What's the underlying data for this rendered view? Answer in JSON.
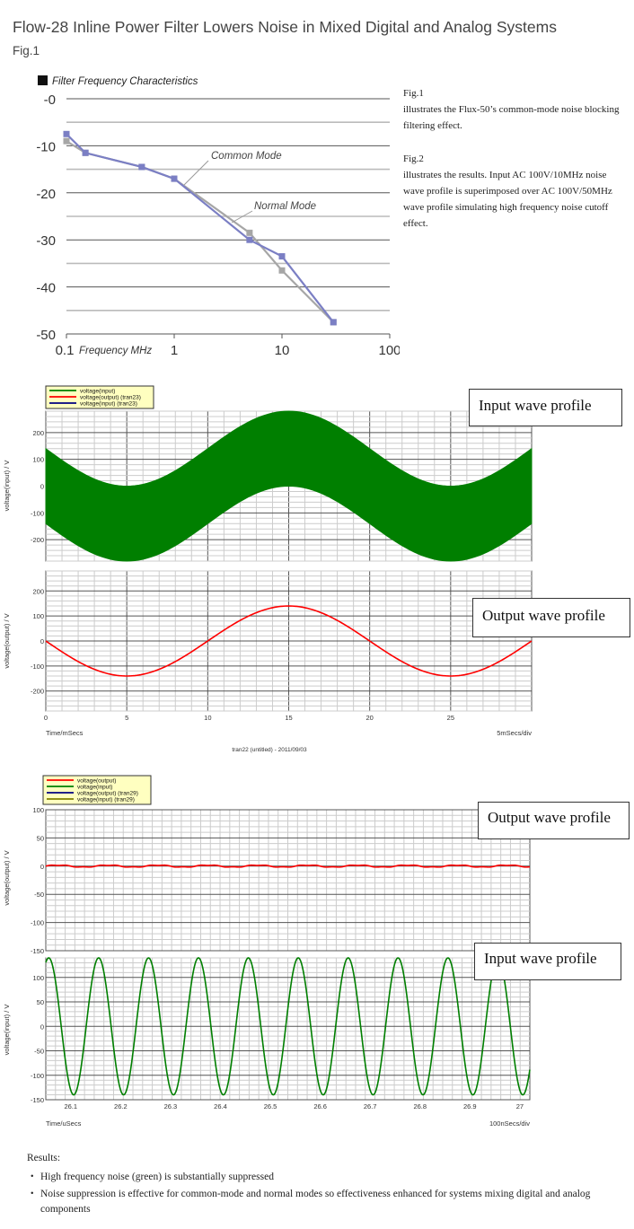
{
  "header": {
    "title": "Flow-28 Inline Power Filter Lowers Noise in Mixed Digital and Analog Systems",
    "fig_label": "Fig.1"
  },
  "notes": {
    "fig1_title": "Fig.1",
    "fig1_text": "illustrates the Flux-50’s common-mode noise blocking filtering effect.",
    "fig2_title": "Fig.2",
    "fig2_text": "illustrates the results. Input AC 100V/10MHz noise wave profile is superimposed over AC 100V/50MHz wave profile simulating high frequency noise cutoff effect."
  },
  "profile_labels": {
    "input_1": "Input wave profile",
    "output_1": "Output wave profile",
    "output_2": "Output wave profile",
    "input_2": "Input wave profile"
  },
  "results": {
    "heading": "Results:",
    "bullets": [
      "High frequency noise (green) is substantially suppressed",
      "Noise suppression is effective for common-mode and normal modes so effectiveness enhanced for systems mixing digital and analog components"
    ]
  },
  "colors": {
    "common_mode": "#7b7fc4",
    "normal_mode": "#a6a6a6",
    "green": "#007f00",
    "red": "#ff0000",
    "blue": "#000080",
    "legend_bg": "#ffffc0"
  },
  "chart_data": [
    {
      "type": "line",
      "title": "Filter Frequency Characteristics",
      "xlabel": "Frequency MHz",
      "x_scale": "log",
      "xlim": [
        0.1,
        100
      ],
      "ylim": [
        -50,
        0
      ],
      "x_ticks": [
        "0.1",
        "1",
        "10",
        "100"
      ],
      "y_ticks": [
        "-0",
        "-10",
        "-20",
        "-30",
        "-40",
        "-50"
      ],
      "annotations": [
        "Common Mode",
        "Normal Mode"
      ],
      "series": [
        {
          "name": "Common Mode",
          "x": [
            0.1,
            0.15,
            0.5,
            1,
            5,
            10,
            30
          ],
          "y": [
            -7.5,
            -11.5,
            -14.5,
            -17,
            -30,
            -33.5,
            -47.5
          ]
        },
        {
          "name": "Normal Mode",
          "x": [
            0.1,
            0.15,
            0.5,
            1,
            5,
            10,
            30
          ],
          "y": [
            -9,
            -11.5,
            -14.5,
            -17,
            -28.5,
            -36.5,
            -47.5
          ]
        }
      ]
    },
    {
      "type": "line",
      "legend": [
        "voltage(input)",
        "voltage(output) (tran23)",
        "voltage(input) (tran23)"
      ],
      "ylabel": "voltage(input) / V",
      "ylim": [
        -280,
        280
      ],
      "y_ticks": [
        "200",
        "100",
        "0",
        "-100",
        "-200"
      ],
      "series": [
        {
          "name": "voltage(input)",
          "carrier_amplitude": 140,
          "carrier_period_ms": 20,
          "noise_amplitude": 140
        }
      ]
    },
    {
      "type": "line",
      "ylabel": "voltage(output) / V",
      "xlabel": "Time/mSecs",
      "x_units_label": "5mSecs/div",
      "caption": "tran22 (untitled) - 2011/09/03",
      "xlim": [
        0,
        30
      ],
      "ylim": [
        -280,
        280
      ],
      "x_ticks": [
        "0",
        "5",
        "10",
        "15",
        "20",
        "25"
      ],
      "y_ticks": [
        "200",
        "100",
        "0",
        "-100",
        "-200"
      ],
      "series": [
        {
          "name": "voltage(output)",
          "amplitude": 140,
          "period_ms": 20
        }
      ]
    },
    {
      "type": "line",
      "legend": [
        "voltage(output)",
        "voltage(input)",
        "voltage(output) (tran29)",
        "voltage(input) (tran29)"
      ],
      "ylabel": "voltage(output) / V",
      "ylim": [
        -150,
        100
      ],
      "y_ticks": [
        "100",
        "50",
        "0",
        "-50",
        "-100",
        "-150"
      ],
      "series": [
        {
          "name": "voltage(output)",
          "amplitude": 2,
          "period_us": 0.1
        }
      ]
    },
    {
      "type": "line",
      "ylabel": "voltage(input) / V",
      "xlabel": "Time/uSecs",
      "x_units_label": "100nSecs/div",
      "xlim": [
        26.05,
        27.02
      ],
      "ylim": [
        -150,
        140
      ],
      "x_ticks": [
        "26.1",
        "26.2",
        "26.3",
        "26.4",
        "26.5",
        "26.6",
        "26.7",
        "26.8",
        "26.9",
        "27"
      ],
      "y_ticks": [
        "100",
        "50",
        "0",
        "-50",
        "-100",
        "-150"
      ],
      "series": [
        {
          "name": "voltage(input)",
          "amplitude": 140,
          "period_us": 0.1
        }
      ]
    }
  ]
}
